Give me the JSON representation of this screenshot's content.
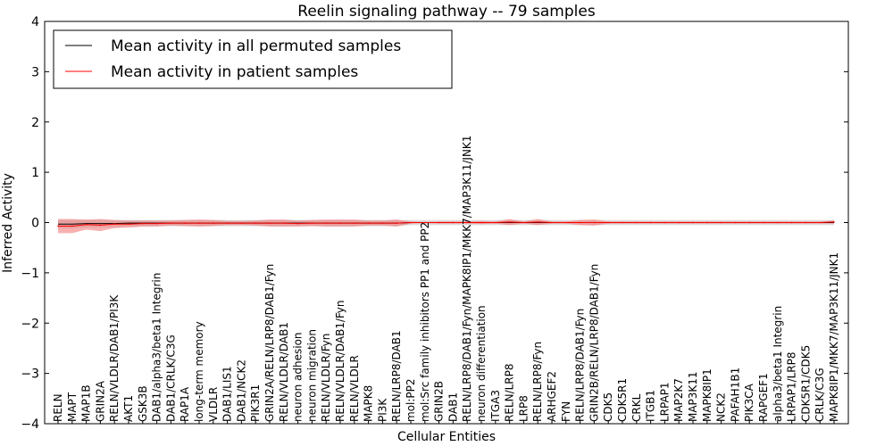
{
  "chart_data": {
    "type": "line",
    "title": "Reelin signaling pathway -- 79 samples",
    "xlabel": "Cellular Entities",
    "ylabel": "Inferred Activity",
    "ylim": [
      -4,
      4
    ],
    "yticks": [
      -4,
      -3,
      -2,
      -1,
      0,
      1,
      2,
      3,
      4
    ],
    "ytick_labels": [
      "−4",
      "−3",
      "−2",
      "−1",
      "0",
      "1",
      "2",
      "3",
      "4"
    ],
    "legend_position": "top-left",
    "categories": [
      "RELN",
      "MAPT",
      "MAP1B",
      "GRIN2A",
      "RELN/VLDLR/DAB1/PI3K",
      "AKT1",
      "GSK3B",
      "DAB1/alpha3/beta1 Integrin",
      "DAB1/CRLK/C3G",
      "RAP1A",
      "long-term memory",
      "VLDLR",
      "DAB1/LIS1",
      "DAB1/NCK2",
      "PIK3R1",
      "GRIN2A/RELN/LRP8/DAB1/Fyn",
      "RELN/VLDLR/DAB1",
      "neuron adhesion",
      "neuron migration",
      "RELN/VLDLR/Fyn",
      "RELN/VLDLR/DAB1/Fyn",
      "RELN/VLDLR",
      "MAPK8",
      "PI3K",
      "RELN/LRP8/DAB1",
      "mol:PP2",
      "mol:Src family inhibitors PP1 and PP2",
      "GRIN2B",
      "DAB1",
      "RELN/LRP8/DAB1/Fyn/MAPK8IP1/MKK7/MAP3K11/JNK1",
      "neuron differentiation",
      "ITGA3",
      "RELN/LRP8",
      "LRP8",
      "RELN/LRP8/Fyn",
      "ARHGEF2",
      "FYN",
      "RELN/LRP8/DAB1/Fyn",
      "GRIN2B/RELN/LRP8/DAB1/Fyn",
      "CDK5",
      "CDK5R1",
      "CRKL",
      "ITGB1",
      "LRPAP1",
      "MAP2K7",
      "MAP3K11",
      "MAPK8IP1",
      "NCK2",
      "PAFAH1B1",
      "PIK3CA",
      "RAPGEF1",
      "alpha3/beta1 Integrin",
      "LRPAP1/LRP8",
      "CDK5R1/CDK5",
      "CRLK/C3G",
      "MAPK8IP1/MKK7/MAP3K11/JNK1"
    ],
    "series": [
      {
        "name": "Mean activity in all permuted samples",
        "color": "#000000",
        "values": [
          -0.03,
          -0.03,
          -0.02,
          -0.02,
          -0.02,
          -0.01,
          -0.01,
          -0.01,
          -0.01,
          -0.01,
          -0.01,
          -0.01,
          -0.01,
          -0.01,
          -0.01,
          -0.01,
          -0.01,
          -0.01,
          -0.01,
          -0.01,
          -0.01,
          -0.01,
          -0.01,
          -0.01,
          -0.01,
          0.0,
          0.0,
          0.0,
          0.0,
          0.0,
          0.0,
          0.0,
          0.0,
          0.0,
          0.0,
          0.0,
          0.0,
          0.0,
          0.0,
          0.0,
          0.0,
          0.0,
          0.0,
          0.0,
          0.0,
          0.0,
          0.0,
          0.0,
          0.0,
          0.0,
          0.0,
          0.0,
          0.0,
          0.0,
          0.0,
          0.0
        ],
        "spread": [
          0.08,
          0.08,
          0.07,
          0.07,
          0.07,
          0.06,
          0.06,
          0.06,
          0.06,
          0.06,
          0.06,
          0.06,
          0.06,
          0.06,
          0.06,
          0.06,
          0.06,
          0.06,
          0.06,
          0.06,
          0.06,
          0.06,
          0.06,
          0.06,
          0.06,
          0.05,
          0.05,
          0.05,
          0.05,
          0.05,
          0.05,
          0.05,
          0.05,
          0.05,
          0.05,
          0.05,
          0.05,
          0.05,
          0.05,
          0.05,
          0.05,
          0.05,
          0.05,
          0.05,
          0.05,
          0.05,
          0.05,
          0.05,
          0.05,
          0.05,
          0.05,
          0.05,
          0.05,
          0.05,
          0.05,
          0.05
        ]
      },
      {
        "name": "Mean activity in patient samples",
        "color": "#ff0000",
        "band_color": "#f07070",
        "values": [
          -0.07,
          -0.07,
          -0.04,
          -0.05,
          -0.03,
          -0.03,
          -0.02,
          -0.02,
          -0.01,
          -0.01,
          -0.01,
          -0.01,
          -0.01,
          -0.01,
          -0.01,
          -0.01,
          -0.01,
          -0.02,
          -0.01,
          -0.01,
          -0.01,
          -0.01,
          -0.01,
          -0.01,
          -0.01,
          0.0,
          0.0,
          0.0,
          0.0,
          0.0,
          0.0,
          0.0,
          0.01,
          0.0,
          0.01,
          0.0,
          0.0,
          0.0,
          0.0,
          0.0,
          0.0,
          0.0,
          0.0,
          0.0,
          0.0,
          0.0,
          0.0,
          0.0,
          0.0,
          0.0,
          0.0,
          0.0,
          0.0,
          0.0,
          0.0,
          0.01
        ],
        "spread": [
          0.14,
          0.14,
          0.1,
          0.12,
          0.08,
          0.07,
          0.06,
          0.06,
          0.05,
          0.06,
          0.07,
          0.06,
          0.04,
          0.04,
          0.05,
          0.07,
          0.07,
          0.06,
          0.06,
          0.07,
          0.07,
          0.07,
          0.05,
          0.05,
          0.07,
          0.02,
          0.01,
          0.02,
          0.02,
          0.02,
          0.03,
          0.02,
          0.06,
          0.02,
          0.06,
          0.02,
          0.02,
          0.05,
          0.06,
          0.02,
          0.02,
          0.02,
          0.02,
          0.02,
          0.02,
          0.02,
          0.02,
          0.02,
          0.02,
          0.02,
          0.02,
          0.02,
          0.02,
          0.02,
          0.02,
          0.03
        ]
      }
    ]
  }
}
